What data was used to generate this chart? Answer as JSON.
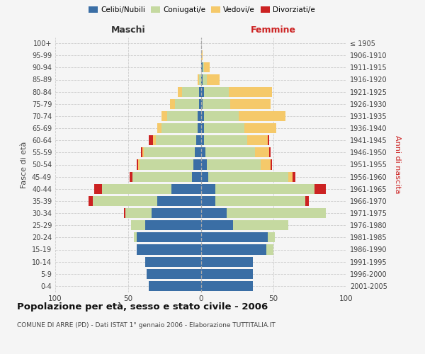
{
  "age_groups": [
    "0-4",
    "5-9",
    "10-14",
    "15-19",
    "20-24",
    "25-29",
    "30-34",
    "35-39",
    "40-44",
    "45-49",
    "50-54",
    "55-59",
    "60-64",
    "65-69",
    "70-74",
    "75-79",
    "80-84",
    "85-89",
    "90-94",
    "95-99",
    "100+"
  ],
  "birth_years": [
    "2001-2005",
    "1996-2000",
    "1991-1995",
    "1986-1990",
    "1981-1985",
    "1976-1980",
    "1971-1975",
    "1966-1970",
    "1961-1965",
    "1956-1960",
    "1951-1955",
    "1946-1950",
    "1941-1945",
    "1936-1940",
    "1931-1935",
    "1926-1930",
    "1921-1925",
    "1916-1920",
    "1911-1915",
    "1906-1910",
    "≤ 1905"
  ],
  "colors": {
    "celibi": "#3a6ea5",
    "coniugati": "#c5d9a0",
    "vedovi": "#f5c96a",
    "divorziati": "#cc2222"
  },
  "male_celibi": [
    36,
    37,
    38,
    44,
    44,
    38,
    34,
    30,
    20,
    6,
    5,
    4,
    3,
    2,
    2,
    1,
    1,
    0,
    0,
    0,
    0
  ],
  "male_coniugati": [
    0,
    0,
    0,
    0,
    2,
    10,
    18,
    44,
    48,
    41,
    37,
    35,
    28,
    25,
    21,
    17,
    12,
    1,
    0,
    0,
    0
  ],
  "male_vedovi": [
    0,
    0,
    0,
    0,
    0,
    0,
    0,
    0,
    0,
    0,
    1,
    1,
    2,
    3,
    4,
    3,
    3,
    1,
    0,
    0,
    0
  ],
  "male_divorziati": [
    0,
    0,
    0,
    0,
    0,
    0,
    1,
    3,
    5,
    2,
    1,
    1,
    3,
    0,
    0,
    0,
    0,
    0,
    0,
    0,
    0
  ],
  "female_nubili": [
    36,
    36,
    36,
    45,
    46,
    22,
    18,
    10,
    10,
    5,
    4,
    3,
    2,
    2,
    2,
    1,
    2,
    1,
    1,
    0,
    0
  ],
  "female_coniugati": [
    0,
    0,
    0,
    5,
    5,
    38,
    68,
    62,
    68,
    55,
    37,
    34,
    30,
    28,
    24,
    19,
    17,
    3,
    1,
    0,
    0
  ],
  "female_vedovi": [
    0,
    0,
    0,
    0,
    0,
    0,
    0,
    0,
    0,
    3,
    7,
    10,
    14,
    22,
    32,
    28,
    30,
    9,
    4,
    1,
    0
  ],
  "female_divorziati": [
    0,
    0,
    0,
    0,
    0,
    0,
    0,
    2,
    8,
    2,
    1,
    1,
    1,
    0,
    0,
    0,
    0,
    0,
    0,
    0,
    0
  ],
  "xlim": 100,
  "title": "Popolazione per età, sesso e stato civile - 2006",
  "subtitle": "COMUNE DI ARRE (PD) - Dati ISTAT 1° gennaio 2006 - Elaborazione TUTTITALIA.IT",
  "ylabel_left": "Fasce di età",
  "ylabel_right": "Anni di nascita",
  "xlabel_left": "Maschi",
  "xlabel_right": "Femmine",
  "legend_labels": [
    "Celibi/Nubili",
    "Coniugati/e",
    "Vedovi/e",
    "Divorziati/e"
  ],
  "bg_color": "#f5f5f5",
  "bar_height": 0.82
}
